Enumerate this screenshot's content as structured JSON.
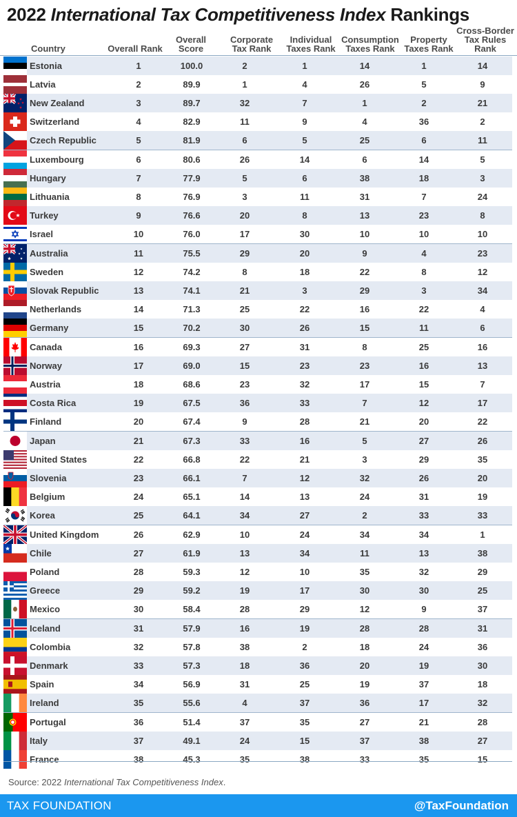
{
  "title": {
    "prefix": "2022",
    "italic": "International Tax Competitiveness Index",
    "suffix": "Rankings"
  },
  "columns": [
    {
      "key": "country",
      "label": "Country"
    },
    {
      "key": "overall_rank",
      "label": "Overall Rank"
    },
    {
      "key": "overall_score",
      "label": "Overall\nScore"
    },
    {
      "key": "corporate",
      "label": "Corporate\nTax Rank"
    },
    {
      "key": "individual",
      "label": "Individual\nTaxes Rank"
    },
    {
      "key": "consumption",
      "label": "Consumption\nTaxes Rank"
    },
    {
      "key": "property",
      "label": "Property\nTaxes Rank"
    },
    {
      "key": "crossborder",
      "label": "Cross-Border\nTax Rules\nRank"
    }
  ],
  "chart_data": {
    "type": "table",
    "title": "2022 International Tax Competitiveness Index Rankings",
    "columns": [
      "Country",
      "Overall Rank",
      "Overall Score",
      "Corporate Tax Rank",
      "Individual Taxes Rank",
      "Consumption Taxes Rank",
      "Property Taxes Rank",
      "Cross-Border Tax Rules Rank"
    ],
    "rows": [
      {
        "country": "Estonia",
        "flag": "estonia-flag",
        "rank": "1",
        "score": "100.0",
        "corp": "2",
        "indiv": "1",
        "cons": "14",
        "prop": "1",
        "cross": "14"
      },
      {
        "country": "Latvia",
        "flag": "latvia-flag",
        "rank": "2",
        "score": "89.9",
        "corp": "1",
        "indiv": "4",
        "cons": "26",
        "prop": "5",
        "cross": "9"
      },
      {
        "country": "New Zealand",
        "flag": "new-zealand-flag",
        "rank": "3",
        "score": "89.7",
        "corp": "32",
        "indiv": "7",
        "cons": "1",
        "prop": "2",
        "cross": "21"
      },
      {
        "country": "Switzerland",
        "flag": "switzerland-flag",
        "rank": "4",
        "score": "82.9",
        "corp": "11",
        "indiv": "9",
        "cons": "4",
        "prop": "36",
        "cross": "2"
      },
      {
        "country": "Czech Republic",
        "flag": "czech-republic-flag",
        "rank": "5",
        "score": "81.9",
        "corp": "6",
        "indiv": "5",
        "cons": "25",
        "prop": "6",
        "cross": "11"
      },
      {
        "country": "Luxembourg",
        "flag": "luxembourg-flag",
        "rank": "6",
        "score": "80.6",
        "corp": "26",
        "indiv": "14",
        "cons": "6",
        "prop": "14",
        "cross": "5"
      },
      {
        "country": "Hungary",
        "flag": "hungary-flag",
        "rank": "7",
        "score": "77.9",
        "corp": "5",
        "indiv": "6",
        "cons": "38",
        "prop": "18",
        "cross": "3"
      },
      {
        "country": "Lithuania",
        "flag": "lithuania-flag",
        "rank": "8",
        "score": "76.9",
        "corp": "3",
        "indiv": "11",
        "cons": "31",
        "prop": "7",
        "cross": "24"
      },
      {
        "country": "Turkey",
        "flag": "turkey-flag",
        "rank": "9",
        "score": "76.6",
        "corp": "20",
        "indiv": "8",
        "cons": "13",
        "prop": "23",
        "cross": "8"
      },
      {
        "country": "Israel",
        "flag": "israel-flag",
        "rank": "10",
        "score": "76.0",
        "corp": "17",
        "indiv": "30",
        "cons": "10",
        "prop": "10",
        "cross": "10"
      },
      {
        "country": "Australia",
        "flag": "australia-flag",
        "rank": "11",
        "score": "75.5",
        "corp": "29",
        "indiv": "20",
        "cons": "9",
        "prop": "4",
        "cross": "23"
      },
      {
        "country": "Sweden",
        "flag": "sweden-flag",
        "rank": "12",
        "score": "74.2",
        "corp": "8",
        "indiv": "18",
        "cons": "22",
        "prop": "8",
        "cross": "12"
      },
      {
        "country": "Slovak Republic",
        "flag": "slovak-republic-flag",
        "rank": "13",
        "score": "74.1",
        "corp": "21",
        "indiv": "3",
        "cons": "29",
        "prop": "3",
        "cross": "34"
      },
      {
        "country": "Netherlands",
        "flag": "netherlands-flag",
        "rank": "14",
        "score": "71.3",
        "corp": "25",
        "indiv": "22",
        "cons": "16",
        "prop": "22",
        "cross": "4"
      },
      {
        "country": "Germany",
        "flag": "germany-flag",
        "rank": "15",
        "score": "70.2",
        "corp": "30",
        "indiv": "26",
        "cons": "15",
        "prop": "11",
        "cross": "6"
      },
      {
        "country": "Canada",
        "flag": "canada-flag",
        "rank": "16",
        "score": "69.3",
        "corp": "27",
        "indiv": "31",
        "cons": "8",
        "prop": "25",
        "cross": "16"
      },
      {
        "country": "Norway",
        "flag": "norway-flag",
        "rank": "17",
        "score": "69.0",
        "corp": "15",
        "indiv": "23",
        "cons": "23",
        "prop": "16",
        "cross": "13"
      },
      {
        "country": "Austria",
        "flag": "austria-flag",
        "rank": "18",
        "score": "68.6",
        "corp": "23",
        "indiv": "32",
        "cons": "17",
        "prop": "15",
        "cross": "7"
      },
      {
        "country": "Costa Rica",
        "flag": "costa-rica-flag",
        "rank": "19",
        "score": "67.5",
        "corp": "36",
        "indiv": "33",
        "cons": "7",
        "prop": "12",
        "cross": "17"
      },
      {
        "country": "Finland",
        "flag": "finland-flag",
        "rank": "20",
        "score": "67.4",
        "corp": "9",
        "indiv": "28",
        "cons": "21",
        "prop": "20",
        "cross": "22"
      },
      {
        "country": "Japan",
        "flag": "japan-flag",
        "rank": "21",
        "score": "67.3",
        "corp": "33",
        "indiv": "16",
        "cons": "5",
        "prop": "27",
        "cross": "26"
      },
      {
        "country": "United States",
        "flag": "united-states-flag",
        "rank": "22",
        "score": "66.8",
        "corp": "22",
        "indiv": "21",
        "cons": "3",
        "prop": "29",
        "cross": "35"
      },
      {
        "country": "Slovenia",
        "flag": "slovenia-flag",
        "rank": "23",
        "score": "66.1",
        "corp": "7",
        "indiv": "12",
        "cons": "32",
        "prop": "26",
        "cross": "20"
      },
      {
        "country": "Belgium",
        "flag": "belgium-flag",
        "rank": "24",
        "score": "65.1",
        "corp": "14",
        "indiv": "13",
        "cons": "24",
        "prop": "31",
        "cross": "19"
      },
      {
        "country": "Korea",
        "flag": "korea-flag",
        "rank": "25",
        "score": "64.1",
        "corp": "34",
        "indiv": "27",
        "cons": "2",
        "prop": "33",
        "cross": "33"
      },
      {
        "country": "United Kingdom",
        "flag": "united-kingdom-flag",
        "rank": "26",
        "score": "62.9",
        "corp": "10",
        "indiv": "24",
        "cons": "34",
        "prop": "34",
        "cross": "1"
      },
      {
        "country": "Chile",
        "flag": "chile-flag",
        "rank": "27",
        "score": "61.9",
        "corp": "13",
        "indiv": "34",
        "cons": "11",
        "prop": "13",
        "cross": "38"
      },
      {
        "country": "Poland",
        "flag": "poland-flag",
        "rank": "28",
        "score": "59.3",
        "corp": "12",
        "indiv": "10",
        "cons": "35",
        "prop": "32",
        "cross": "29"
      },
      {
        "country": "Greece",
        "flag": "greece-flag",
        "rank": "29",
        "score": "59.2",
        "corp": "19",
        "indiv": "17",
        "cons": "30",
        "prop": "30",
        "cross": "25"
      },
      {
        "country": "Mexico",
        "flag": "mexico-flag",
        "rank": "30",
        "score": "58.4",
        "corp": "28",
        "indiv": "29",
        "cons": "12",
        "prop": "9",
        "cross": "37"
      },
      {
        "country": "Iceland",
        "flag": "iceland-flag",
        "rank": "31",
        "score": "57.9",
        "corp": "16",
        "indiv": "19",
        "cons": "28",
        "prop": "28",
        "cross": "31"
      },
      {
        "country": "Colombia",
        "flag": "colombia-flag",
        "rank": "32",
        "score": "57.8",
        "corp": "38",
        "indiv": "2",
        "cons": "18",
        "prop": "24",
        "cross": "36"
      },
      {
        "country": "Denmark",
        "flag": "denmark-flag",
        "rank": "33",
        "score": "57.3",
        "corp": "18",
        "indiv": "36",
        "cons": "20",
        "prop": "19",
        "cross": "30"
      },
      {
        "country": "Spain",
        "flag": "spain-flag",
        "rank": "34",
        "score": "56.9",
        "corp": "31",
        "indiv": "25",
        "cons": "19",
        "prop": "37",
        "cross": "18"
      },
      {
        "country": "Ireland",
        "flag": "ireland-flag",
        "rank": "35",
        "score": "55.6",
        "corp": "4",
        "indiv": "37",
        "cons": "36",
        "prop": "17",
        "cross": "32"
      },
      {
        "country": "Portugal",
        "flag": "portugal-flag",
        "rank": "36",
        "score": "51.4",
        "corp": "37",
        "indiv": "35",
        "cons": "27",
        "prop": "21",
        "cross": "28"
      },
      {
        "country": "Italy",
        "flag": "italy-flag",
        "rank": "37",
        "score": "49.1",
        "corp": "24",
        "indiv": "15",
        "cons": "37",
        "prop": "38",
        "cross": "27"
      },
      {
        "country": "France",
        "flag": "france-flag",
        "rank": "38",
        "score": "45.3",
        "corp": "35",
        "indiv": "38",
        "cons": "33",
        "prop": "35",
        "cross": "15"
      }
    ]
  },
  "source": {
    "prefix": "Source: 2022 ",
    "italic": "International Tax Competitiveness Index",
    "suffix": "."
  },
  "footer": {
    "brand": "TAX FOUNDATION",
    "handle": "@TaxFoundation"
  },
  "colors": {
    "footer_bg": "#1b97ef",
    "band": "#e4eaf3",
    "rule": "#8aa7c2"
  }
}
